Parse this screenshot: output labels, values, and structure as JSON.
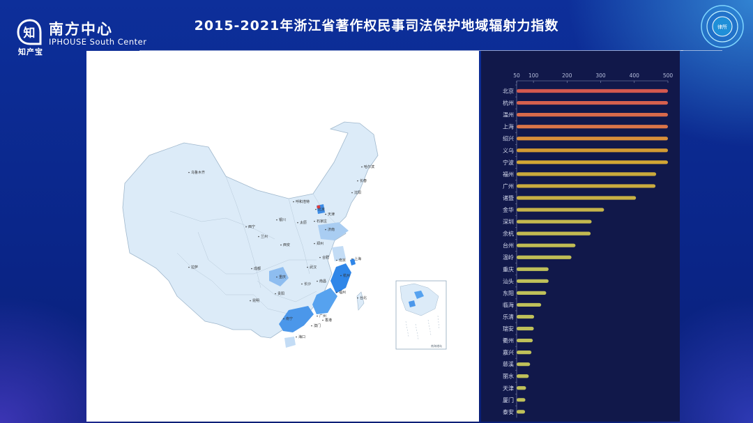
{
  "brand": {
    "cn_name": "南方中心",
    "en_name": "IPHOUSE South Center",
    "logo_glyph": "知",
    "logo_sub": "知产宝",
    "badge_text": "律所"
  },
  "title": "2015-2021年浙江省著作权民事司法保护地域辐射力指数",
  "map": {
    "inset_label": "南海诸岛",
    "highlight_color": "#2f86e8",
    "base_color": "#dcebf8",
    "cities": [
      {
        "name": "乌鲁木齐"
      },
      {
        "name": "哈尔滨"
      },
      {
        "name": "长春"
      },
      {
        "name": "沈阳"
      },
      {
        "name": "呼和浩特"
      },
      {
        "name": "北京"
      },
      {
        "name": "天津"
      },
      {
        "name": "银川"
      },
      {
        "name": "太原"
      },
      {
        "name": "石家庄"
      },
      {
        "name": "济南"
      },
      {
        "name": "西宁"
      },
      {
        "name": "兰州"
      },
      {
        "name": "西安"
      },
      {
        "name": "郑州"
      },
      {
        "name": "拉萨"
      },
      {
        "name": "成都"
      },
      {
        "name": "合肥"
      },
      {
        "name": "南京"
      },
      {
        "name": "上海"
      },
      {
        "name": "武汉"
      },
      {
        "name": "杭州"
      },
      {
        "name": "重庆"
      },
      {
        "name": "长沙"
      },
      {
        "name": "南昌"
      },
      {
        "name": "福州"
      },
      {
        "name": "贵阳"
      },
      {
        "name": "昆明"
      },
      {
        "name": "台北"
      },
      {
        "name": "广州"
      },
      {
        "name": "香港"
      },
      {
        "name": "南宁"
      },
      {
        "name": "澳门"
      },
      {
        "name": "海口"
      }
    ]
  },
  "chart_data": {
    "type": "bar",
    "orientation": "horizontal",
    "categories": [
      "北京",
      "杭州",
      "温州",
      "上海",
      "绍兴",
      "义乌",
      "宁波",
      "福州",
      "广州",
      "诸暨",
      "金华",
      "深圳",
      "余杭",
      "台州",
      "温岭",
      "重庆",
      "汕头",
      "东阳",
      "临海",
      "乐清",
      "瑞安",
      "衢州",
      "嘉兴",
      "慈溪",
      "丽水",
      "天津",
      "厦门",
      "泰安"
    ],
    "values": [
      500,
      500,
      500,
      500,
      500,
      500,
      500,
      465,
      463,
      405,
      310,
      273,
      270,
      225,
      213,
      145,
      145,
      138,
      123,
      102,
      101,
      98,
      94,
      90,
      86,
      78,
      76,
      75
    ],
    "xaxis": {
      "min": 50,
      "max": 500,
      "position": "top",
      "ticks": [
        50,
        100,
        200,
        300,
        400,
        500
      ]
    },
    "colors": [
      "#d2584f",
      "#d5604e",
      "#d8694b",
      "#da7448",
      "#d88f3a",
      "#d29a33",
      "#d2a634",
      "#c9a93c",
      "#c9ab3f",
      "#c7b045",
      "#c5b44b",
      "#c3b84f",
      "#c2b951",
      "#c1bc54",
      "#c0bd56",
      "#bfc05a",
      "#bfc05a",
      "#bfc05a",
      "#bfc05a",
      "#bfc05a",
      "#bfc05a",
      "#bfc05a",
      "#bfc05a",
      "#bfc05a",
      "#bfc05a",
      "#bfc05a",
      "#bfc05a",
      "#bfc05a"
    ]
  }
}
